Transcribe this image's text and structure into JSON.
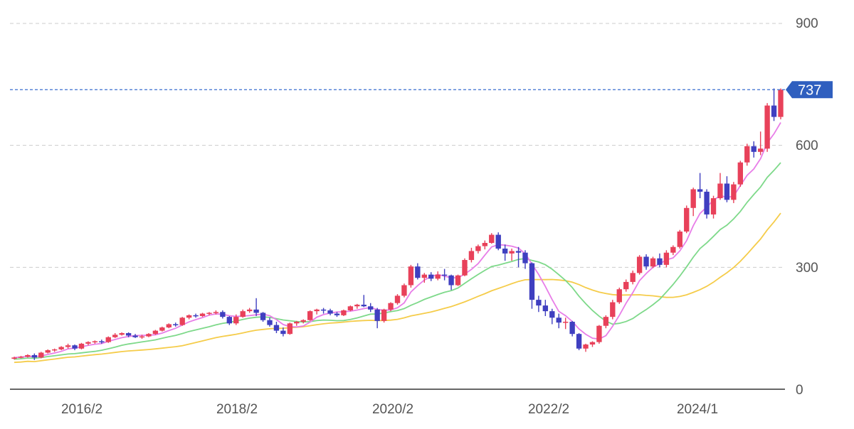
{
  "chart_data": {
    "type": "candlestick",
    "y_ticks": [
      "900",
      "600",
      "300",
      "0"
    ],
    "y_tick_values": [
      900,
      600,
      300,
      0
    ],
    "x_ticks": [
      "2016/2",
      "2018/2",
      "2020/2",
      "2022/2",
      "2024/1"
    ],
    "ylim": [
      0,
      900
    ],
    "grid": true,
    "last_price": 737,
    "last_price_label": "737",
    "colors": {
      "up": "#e8415a",
      "down": "#3f3fc0",
      "ma_short": "#e87ee8",
      "ma_mid": "#7ed98a",
      "ma_long": "#f5cc4a",
      "price_line": "#3a6fcf",
      "price_tag": "#2f5fbf",
      "grid": "#cccccc",
      "axis_text": "#555555"
    },
    "candles_ohlc": [
      [
        75,
        80,
        73,
        78
      ],
      [
        78,
        82,
        76,
        80
      ],
      [
        80,
        86,
        78,
        84
      ],
      [
        84,
        88,
        72,
        78
      ],
      [
        78,
        92,
        76,
        90
      ],
      [
        90,
        98,
        88,
        96
      ],
      [
        96,
        100,
        92,
        98
      ],
      [
        98,
        106,
        96,
        104
      ],
      [
        104,
        112,
        100,
        108
      ],
      [
        108,
        110,
        96,
        100
      ],
      [
        100,
        114,
        98,
        112
      ],
      [
        112,
        118,
        108,
        116
      ],
      [
        116,
        120,
        112,
        118
      ],
      [
        118,
        122,
        112,
        116
      ],
      [
        116,
        130,
        114,
        128
      ],
      [
        128,
        138,
        126,
        134
      ],
      [
        134,
        140,
        132,
        138
      ],
      [
        138,
        140,
        128,
        132
      ],
      [
        132,
        136,
        126,
        128
      ],
      [
        128,
        134,
        124,
        130
      ],
      [
        130,
        138,
        128,
        136
      ],
      [
        136,
        146,
        134,
        144
      ],
      [
        144,
        154,
        142,
        152
      ],
      [
        152,
        162,
        150,
        160
      ],
      [
        160,
        164,
        154,
        158
      ],
      [
        158,
        178,
        156,
        176
      ],
      [
        176,
        184,
        172,
        182
      ],
      [
        182,
        186,
        176,
        180
      ],
      [
        180,
        188,
        178,
        186
      ],
      [
        186,
        190,
        182,
        188
      ],
      [
        188,
        194,
        184,
        190
      ],
      [
        190,
        194,
        174,
        178
      ],
      [
        178,
        180,
        158,
        162
      ],
      [
        162,
        184,
        158,
        178
      ],
      [
        178,
        196,
        176,
        192
      ],
      [
        192,
        200,
        188,
        196
      ],
      [
        196,
        224,
        180,
        188
      ],
      [
        188,
        190,
        166,
        170
      ],
      [
        170,
        176,
        154,
        158
      ],
      [
        158,
        166,
        138,
        144
      ],
      [
        144,
        152,
        130,
        136
      ],
      [
        136,
        164,
        134,
        162
      ],
      [
        162,
        168,
        156,
        166
      ],
      [
        166,
        172,
        162,
        170
      ],
      [
        170,
        194,
        168,
        192
      ],
      [
        192,
        198,
        184,
        196
      ],
      [
        196,
        200,
        186,
        194
      ],
      [
        194,
        198,
        182,
        186
      ],
      [
        186,
        190,
        178,
        182
      ],
      [
        182,
        196,
        180,
        194
      ],
      [
        194,
        206,
        192,
        204
      ],
      [
        204,
        210,
        198,
        208
      ],
      [
        208,
        232,
        202,
        204
      ],
      [
        204,
        212,
        190,
        196
      ],
      [
        196,
        200,
        150,
        168
      ],
      [
        168,
        198,
        164,
        196
      ],
      [
        196,
        214,
        192,
        212
      ],
      [
        212,
        234,
        208,
        230
      ],
      [
        230,
        260,
        226,
        256
      ],
      [
        256,
        306,
        250,
        302
      ],
      [
        302,
        310,
        270,
        274
      ],
      [
        274,
        286,
        262,
        282
      ],
      [
        282,
        288,
        266,
        272
      ],
      [
        272,
        290,
        268,
        282
      ],
      [
        282,
        296,
        268,
        280
      ],
      [
        280,
        282,
        244,
        256
      ],
      [
        256,
        282,
        254,
        280
      ],
      [
        280,
        322,
        278,
        318
      ],
      [
        318,
        348,
        312,
        340
      ],
      [
        340,
        356,
        334,
        352
      ],
      [
        352,
        366,
        344,
        360
      ],
      [
        360,
        384,
        358,
        380
      ],
      [
        380,
        386,
        342,
        346
      ],
      [
        346,
        356,
        316,
        334
      ],
      [
        334,
        346,
        316,
        340
      ],
      [
        340,
        350,
        300,
        336
      ],
      [
        336,
        342,
        296,
        310
      ],
      [
        310,
        312,
        198,
        220
      ],
      [
        220,
        230,
        190,
        206
      ],
      [
        206,
        220,
        180,
        192
      ],
      [
        192,
        198,
        160,
        176
      ],
      [
        176,
        186,
        150,
        164
      ],
      [
        164,
        176,
        148,
        166
      ],
      [
        166,
        168,
        130,
        136
      ],
      [
        136,
        138,
        96,
        100
      ],
      [
        100,
        112,
        92,
        110
      ],
      [
        110,
        118,
        104,
        116
      ],
      [
        116,
        158,
        112,
        156
      ],
      [
        156,
        182,
        150,
        178
      ],
      [
        178,
        220,
        172,
        214
      ],
      [
        214,
        250,
        210,
        246
      ],
      [
        246,
        270,
        240,
        264
      ],
      [
        264,
        292,
        258,
        286
      ],
      [
        286,
        330,
        282,
        326
      ],
      [
        326,
        332,
        294,
        302
      ],
      [
        302,
        326,
        298,
        322
      ],
      [
        322,
        334,
        300,
        306
      ],
      [
        306,
        342,
        300,
        336
      ],
      [
        336,
        354,
        330,
        350
      ],
      [
        350,
        392,
        346,
        388
      ],
      [
        388,
        452,
        384,
        446
      ],
      [
        446,
        496,
        426,
        492
      ],
      [
        492,
        532,
        470,
        486
      ],
      [
        486,
        492,
        420,
        430
      ],
      [
        430,
        476,
        420,
        470
      ],
      [
        470,
        532,
        466,
        506
      ],
      [
        506,
        524,
        460,
        466
      ],
      [
        466,
        510,
        458,
        504
      ],
      [
        504,
        562,
        498,
        558
      ],
      [
        558,
        604,
        550,
        598
      ],
      [
        598,
        610,
        570,
        584
      ],
      [
        584,
        634,
        576,
        592
      ],
      [
        592,
        704,
        584,
        698
      ],
      [
        698,
        740,
        660,
        670
      ],
      [
        670,
        740,
        664,
        737
      ]
    ]
  }
}
